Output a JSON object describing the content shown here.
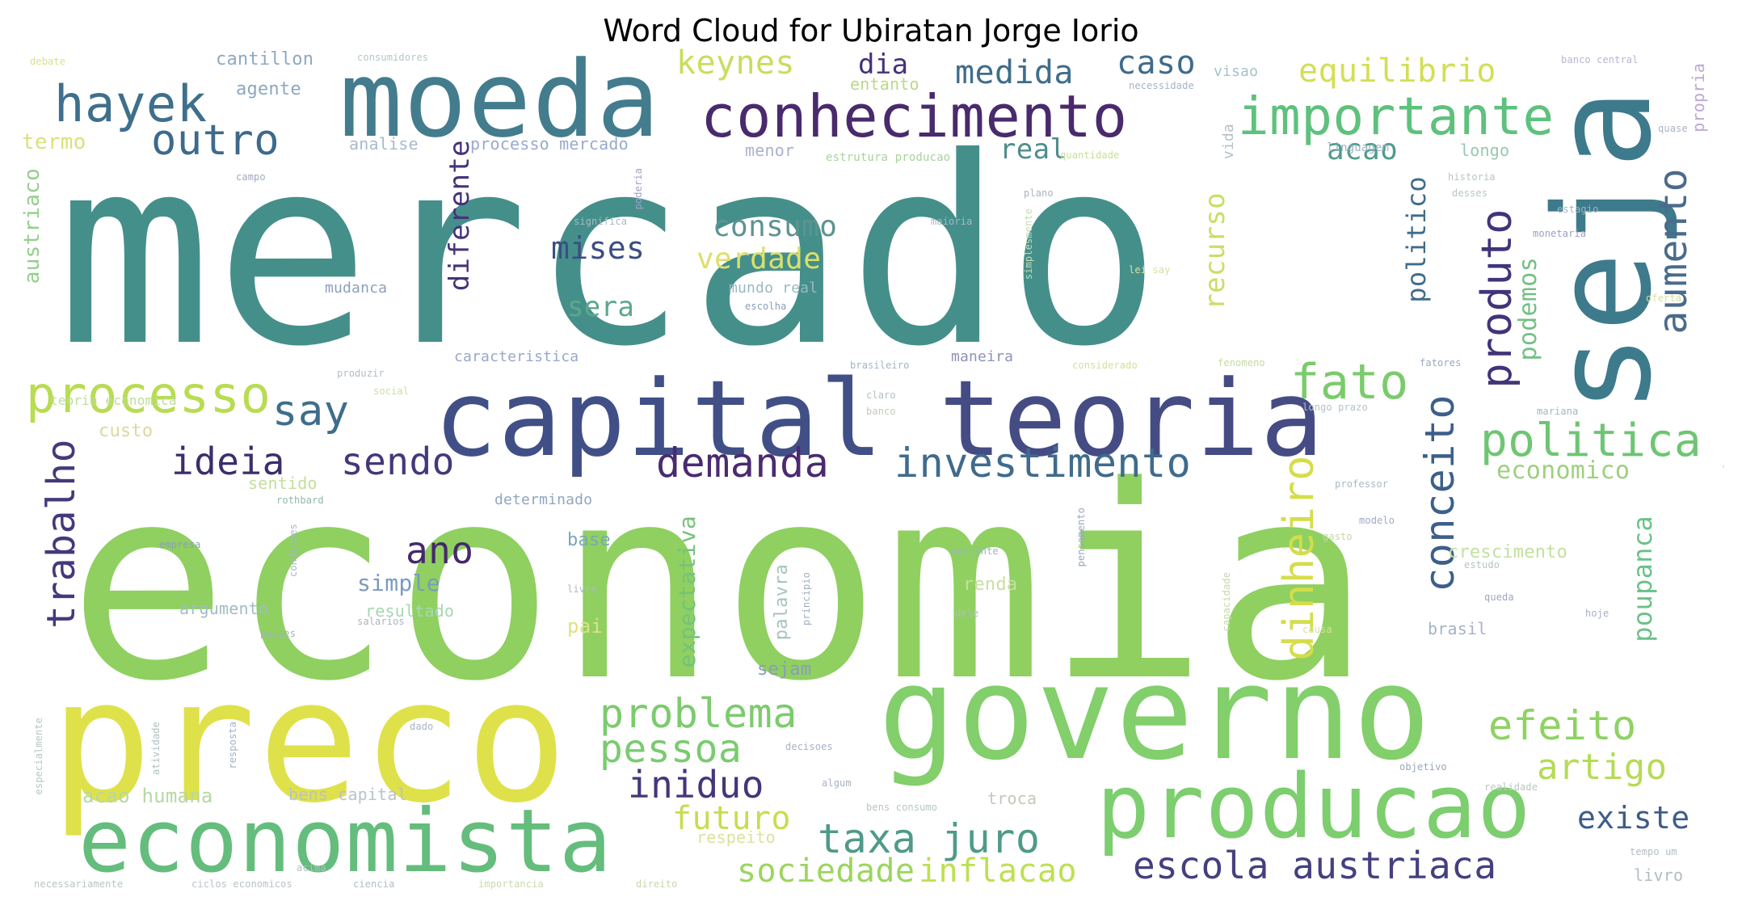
{
  "title": "Word Cloud for Ubiratan Jorge Iorio",
  "words": [
    {
      "text": "mercado",
      "color": "#458f8b"
    },
    {
      "text": "economia",
      "color": "#8fd061"
    },
    {
      "text": "seja",
      "color": "#3d7a8c"
    },
    {
      "text": "preco",
      "color": "#dfe14a"
    },
    {
      "text": "governo",
      "color": "#82cf6b"
    },
    {
      "text": "capital",
      "color": "#414f87"
    },
    {
      "text": "teoria",
      "color": "#454c84"
    },
    {
      "text": "moeda",
      "color": "#437c8d"
    },
    {
      "text": "producao",
      "color": "#7cce6e"
    },
    {
      "text": "economista",
      "color": "#64bd7c"
    },
    {
      "text": "conhecimento",
      "color": "#492a6c"
    },
    {
      "text": "importante",
      "color": "#5ec17d"
    },
    {
      "text": "hayek",
      "color": "#3e6f8c"
    },
    {
      "text": "outro",
      "color": "#3d6a8b"
    },
    {
      "text": "processo",
      "color": "#b8dc52"
    },
    {
      "text": "fato",
      "color": "#7acb6c"
    },
    {
      "text": "dinheiro",
      "color": "#d5dd4a"
    },
    {
      "text": "politica",
      "color": "#6ec572"
    },
    {
      "text": "aumento",
      "color": "#4a6b8b"
    },
    {
      "text": "produto",
      "color": "#42337a"
    },
    {
      "text": "conceito",
      "color": "#3c5f8a"
    },
    {
      "text": "demanda",
      "color": "#4a2a70"
    },
    {
      "text": "investimento",
      "color": "#3f6b8d"
    },
    {
      "text": "ideia",
      "color": "#3c2d6b"
    },
    {
      "text": "sendo",
      "color": "#42397a"
    },
    {
      "text": "say",
      "color": "#3e6e8c"
    },
    {
      "text": "trabalho",
      "color": "#433a7b"
    },
    {
      "text": "taxa juro",
      "color": "#4f9a89"
    },
    {
      "text": "escola austriaca",
      "color": "#44407f"
    },
    {
      "text": "problema",
      "color": "#7ccb6e"
    },
    {
      "text": "pessoa",
      "color": "#7acb70"
    },
    {
      "text": "efeito",
      "color": "#8ed263"
    },
    {
      "text": "artigo",
      "color": "#b6db55"
    },
    {
      "text": "iniduo",
      "color": "#45357a"
    },
    {
      "text": "ano",
      "color": "#45286c"
    },
    {
      "text": "existe",
      "color": "#3f5c88"
    },
    {
      "text": "sociedade",
      "color": "#9cd55e"
    },
    {
      "text": "inflacao",
      "color": "#bde052"
    },
    {
      "text": "futuro",
      "color": "#c9dc50"
    },
    {
      "text": "equilibrio",
      "color": "#d3df54"
    },
    {
      "text": "keynes",
      "color": "#c9dd5c"
    },
    {
      "text": "medida",
      "color": "#3f6d8b"
    },
    {
      "text": "caso",
      "color": "#3e6b8b"
    },
    {
      "text": "dia",
      "color": "#45317a"
    },
    {
      "text": "acao",
      "color": "#4e9c8a"
    },
    {
      "text": "real",
      "color": "#4f8d8c"
    },
    {
      "text": "consumo",
      "color": "#5e9391"
    },
    {
      "text": "verdade",
      "color": "#dbe06a"
    },
    {
      "text": "mises",
      "color": "#3b4d84"
    },
    {
      "text": "sera",
      "color": "#5ca889"
    },
    {
      "text": "diferente",
      "color": "#46327a"
    },
    {
      "text": "recurso",
      "color": "#c7df68"
    },
    {
      "text": "politico",
      "color": "#3e6c8c"
    },
    {
      "text": "podemos",
      "color": "#74bf82"
    },
    {
      "text": "economico",
      "color": "#9cd080"
    },
    {
      "text": "poupanca",
      "color": "#6ac287"
    },
    {
      "text": "expectativa",
      "color": "#74c27c"
    },
    {
      "text": "simple",
      "color": "#7a9bc0"
    },
    {
      "text": "termo",
      "color": "#dcdf7a"
    },
    {
      "text": "austriaco",
      "color": "#94cf8d"
    },
    {
      "text": "agente",
      "color": "#8da7c0"
    },
    {
      "text": "cantillon",
      "color": "#8ea9c2"
    },
    {
      "text": "analise",
      "color": "#aab9cf"
    },
    {
      "text": "processo mercado",
      "color": "#9ba9cc"
    },
    {
      "text": "menor",
      "color": "#aab0d0"
    },
    {
      "text": "entanto",
      "color": "#b9d98a"
    },
    {
      "text": "visao",
      "color": "#a4c3c7"
    },
    {
      "text": "vida",
      "color": "#b4c0c9"
    },
    {
      "text": "longo",
      "color": "#98c7b2"
    },
    {
      "text": "propria",
      "color": "#bfa7d0"
    },
    {
      "text": "estrutura producao",
      "color": "#a8d39b"
    },
    {
      "text": "linguagem",
      "color": "#9bb2c8"
    },
    {
      "text": "mudanca",
      "color": "#8c9fbe"
    },
    {
      "text": "mundo real",
      "color": "#99b9c2"
    },
    {
      "text": "caracteristica",
      "color": "#9aa7c9"
    },
    {
      "text": "maneira",
      "color": "#8d93b8"
    },
    {
      "text": "teoria economica",
      "color": "#bedc9a"
    },
    {
      "text": "custo",
      "color": "#dcd99a"
    },
    {
      "text": "sentido",
      "color": "#c2df9c"
    },
    {
      "text": "determinado",
      "color": "#8fa7c1"
    },
    {
      "text": "base",
      "color": "#7aa9b3"
    },
    {
      "text": "resultado",
      "color": "#a6d7b4"
    },
    {
      "text": "argumento",
      "color": "#a2bcc4"
    },
    {
      "text": "pai",
      "color": "#dfe087"
    },
    {
      "text": "renda",
      "color": "#c8dfa0"
    },
    {
      "text": "crescimento",
      "color": "#c3e0a0"
    },
    {
      "text": "palavra",
      "color": "#a6c3c0"
    },
    {
      "text": "sejam",
      "color": "#8a9bbd"
    },
    {
      "text": "acao humana",
      "color": "#b5d8a4"
    },
    {
      "text": "bens capital",
      "color": "#b7c3c8"
    },
    {
      "text": "respeito",
      "color": "#dce19b"
    },
    {
      "text": "troca",
      "color": "#c0cbb8"
    },
    {
      "text": "brasil",
      "color": "#a4b3c6"
    },
    {
      "text": "livro",
      "color": "#b2bdc6"
    },
    {
      "text": "consumidores",
      "color": "#b4c6c8"
    },
    {
      "text": "banco central",
      "color": "#b6b7d0"
    },
    {
      "text": "debate",
      "color": "#d9df8f"
    },
    {
      "text": "necessidade",
      "color": "#a4b3c4"
    },
    {
      "text": "quantidade",
      "color": "#c6df96"
    },
    {
      "text": "historia",
      "color": "#b5c6c4"
    },
    {
      "text": "desses",
      "color": "#b9c7c2"
    },
    {
      "text": "estagio",
      "color": "#9fb5c3"
    },
    {
      "text": "monetaria",
      "color": "#9aa1bf"
    },
    {
      "text": "significa",
      "color": "#a8b7c5"
    },
    {
      "text": "poderia",
      "color": "#a79fc6"
    },
    {
      "text": "campo",
      "color": "#9fa9be"
    },
    {
      "text": "maioria",
      "color": "#aab6c2"
    },
    {
      "text": "simplesmente",
      "color": "#c5dcb2"
    },
    {
      "text": "plano",
      "color": "#a8b5c3"
    },
    {
      "text": "lei say",
      "color": "#d9df9f"
    },
    {
      "text": "escolha",
      "color": "#8c9cbc"
    },
    {
      "text": "considerado",
      "color": "#d7dd9a"
    },
    {
      "text": "fatores",
      "color": "#9ba9c3"
    },
    {
      "text": "fenomeno",
      "color": "#c4d9a0"
    },
    {
      "text": "brasileiro",
      "color": "#a4b2c6"
    },
    {
      "text": "produzir",
      "color": "#b2bdc5"
    },
    {
      "text": "social",
      "color": "#c9dfa6"
    },
    {
      "text": "claro",
      "color": "#b4c0c4"
    },
    {
      "text": "banco",
      "color": "#c2cdb8"
    },
    {
      "text": "longo prazo",
      "color": "#b5c0c7"
    },
    {
      "text": "mariana",
      "color": "#a6b3c3"
    },
    {
      "text": "professor",
      "color": "#a9b8c6"
    },
    {
      "text": "rothbard",
      "color": "#8eb9a5"
    },
    {
      "text": "empresa",
      "color": "#8c9dbb"
    },
    {
      "text": "condicoes",
      "color": "#a8b5c4"
    },
    {
      "text": "pensamento",
      "color": "#9aa7c2"
    },
    {
      "text": "mediante",
      "color": "#9ab5c2"
    },
    {
      "text": "modelo",
      "color": "#a0a9c0"
    },
    {
      "text": "gasto",
      "color": "#c6d6aa"
    },
    {
      "text": "estudo",
      "color": "#b6c5c0"
    },
    {
      "text": "queda",
      "color": "#9fa6bf"
    },
    {
      "text": "hoje",
      "color": "#a4aec2"
    },
    {
      "text": "livre",
      "color": "#aebbc4"
    },
    {
      "text": "principio",
      "color": "#a1aec1"
    },
    {
      "text": "dele",
      "color": "#b1bcc5"
    },
    {
      "text": "salarios",
      "color": "#a6b5c4"
    },
    {
      "text": "paises",
      "color": "#a2b0c3"
    },
    {
      "text": "capacidade",
      "color": "#c2d9aa"
    },
    {
      "text": "causa",
      "color": "#dcdf9c"
    },
    {
      "text": "decisoes",
      "color": "#a6b2c4"
    },
    {
      "text": "dado",
      "color": "#a8b5c3"
    },
    {
      "text": "objetivo",
      "color": "#9aa5bf"
    },
    {
      "text": "realidade",
      "color": "#b9c8c0"
    },
    {
      "text": "algum",
      "color": "#a7b1c3"
    },
    {
      "text": "bens consumo",
      "color": "#b8c5c0"
    },
    {
      "text": "ciclos economicos",
      "color": "#b8c1c6"
    },
    {
      "text": "ciencia",
      "color": "#b0bdc4"
    },
    {
      "text": "importancia",
      "color": "#c5dbae"
    },
    {
      "text": "direito",
      "color": "#c7d7ac"
    },
    {
      "text": "necessariamente",
      "color": "#b5c7c0"
    },
    {
      "text": "tempo um",
      "color": "#b2bdc5"
    },
    {
      "text": "atividade",
      "color": "#b0c0c0"
    },
    {
      "text": "resposta",
      "color": "#a4b2c3"
    },
    {
      "text": "especialmente",
      "color": "#b4c7c1"
    },
    {
      "text": "oferta",
      "color": "#d4de9e"
    },
    {
      "text": "valor",
      "color": "#c8d9a8"
    },
    {
      "text": "acima",
      "color": "#b2bdc5"
    },
    {
      "text": "quase",
      "color": "#a9b3c3"
    }
  ]
}
